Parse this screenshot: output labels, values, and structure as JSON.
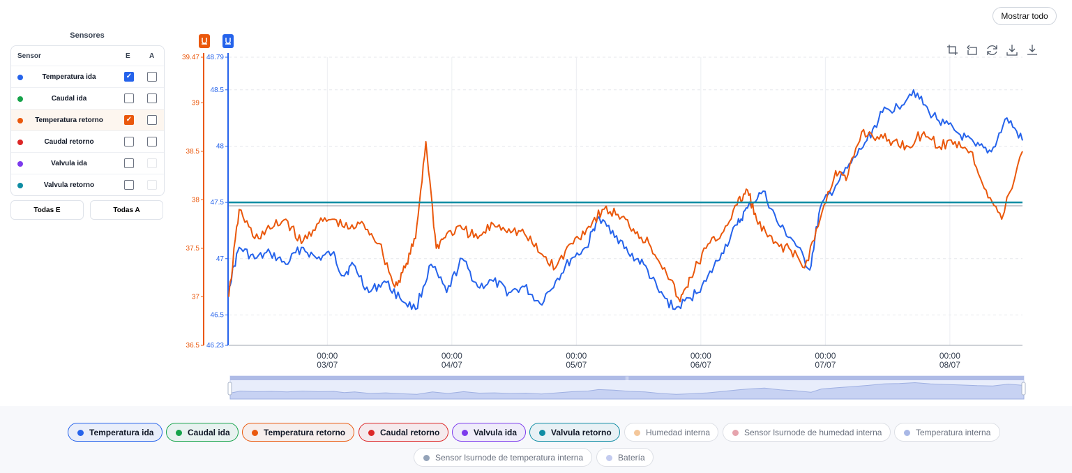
{
  "header": {
    "show_all_label": "Mostrar todo"
  },
  "sensors": {
    "title": "Sensores",
    "columns": {
      "sensor": "Sensor",
      "e": "E",
      "a": "A"
    },
    "rows": [
      {
        "label": "Temperatura ida",
        "color": "#2563eb",
        "e": true,
        "a": false
      },
      {
        "label": "Caudal ida",
        "color": "#16a34a",
        "e": false,
        "a": false
      },
      {
        "label": "Temperatura retorno",
        "color": "#ea580c",
        "e": true,
        "a": false
      },
      {
        "label": "Caudal retorno",
        "color": "#dc2626",
        "e": false,
        "a": false
      },
      {
        "label": "Valvula ida",
        "color": "#7c3aed",
        "e": false,
        "a": null
      },
      {
        "label": "Valvula retorno",
        "color": "#0e8ca3",
        "e": false,
        "a": null
      }
    ],
    "all_e_label": "Todas E",
    "all_a_label": "Todas A"
  },
  "toolbar": {
    "icons": [
      "crop-icon",
      "undo-icon",
      "refresh-icon",
      "download-icon",
      "download-alt-icon"
    ]
  },
  "chart_data": {
    "type": "line",
    "title": "",
    "x_range": [
      "2025-07-02 05:00",
      "2025-07-08 14:00"
    ],
    "x_ticks": [
      {
        "time": "00:00",
        "date": "03/07",
        "x": "2025-07-03 00:00"
      },
      {
        "time": "00:00",
        "date": "04/07",
        "x": "2025-07-04 00:00"
      },
      {
        "time": "00:00",
        "date": "05/07",
        "x": "2025-07-05 00:00"
      },
      {
        "time": "00:00",
        "date": "06/07",
        "x": "2025-07-06 00:00"
      },
      {
        "time": "00:00",
        "date": "07/07",
        "x": "2025-07-07 00:00"
      },
      {
        "time": "00:00",
        "date": "08/07",
        "x": "2025-07-08 00:00"
      }
    ],
    "y_axes": [
      {
        "id": "left",
        "color": "#ea580c",
        "range": [
          36.5,
          39.47
        ],
        "ticks": [
          "36.5",
          "37",
          "37.5",
          "38",
          "38.5",
          "39",
          "39.47"
        ]
      },
      {
        "id": "right",
        "color": "#2563eb",
        "range": [
          46.23,
          48.79
        ],
        "ticks": [
          "46.23",
          "46.5",
          "47",
          "47.5",
          "48",
          "48.5",
          "48.79"
        ]
      }
    ],
    "grid": true,
    "series": [
      {
        "name": "Temperatura ida",
        "color": "#2563eb",
        "axis": "right",
        "points": [
          [
            "2025-07-02 05:00",
            46.75
          ],
          [
            "2025-07-02 07:00",
            47.1
          ],
          [
            "2025-07-02 10:00",
            47.0
          ],
          [
            "2025-07-02 13:00",
            47.05
          ],
          [
            "2025-07-02 16:00",
            46.95
          ],
          [
            "2025-07-02 19:00",
            47.1
          ],
          [
            "2025-07-02 22:00",
            47.0
          ],
          [
            "2025-07-03 01:00",
            47.05
          ],
          [
            "2025-07-03 03:00",
            46.85
          ],
          [
            "2025-07-03 05:00",
            46.95
          ],
          [
            "2025-07-03 08:00",
            46.7
          ],
          [
            "2025-07-03 11:00",
            46.8
          ],
          [
            "2025-07-03 14:00",
            46.65
          ],
          [
            "2025-07-03 17:00",
            46.55
          ],
          [
            "2025-07-03 20:00",
            46.95
          ],
          [
            "2025-07-03 23:00",
            46.7
          ],
          [
            "2025-07-04 02:00",
            47.0
          ],
          [
            "2025-07-04 05:00",
            46.75
          ],
          [
            "2025-07-04 08:00",
            46.8
          ],
          [
            "2025-07-04 11:00",
            46.7
          ],
          [
            "2025-07-04 14:00",
            46.75
          ],
          [
            "2025-07-04 17:00",
            46.6
          ],
          [
            "2025-07-04 20:00",
            46.8
          ],
          [
            "2025-07-04 23:00",
            47.0
          ],
          [
            "2025-07-05 02:00",
            47.1
          ],
          [
            "2025-07-05 04:00",
            47.35
          ],
          [
            "2025-07-05 07:00",
            47.25
          ],
          [
            "2025-07-05 10:00",
            47.05
          ],
          [
            "2025-07-05 13:00",
            46.95
          ],
          [
            "2025-07-05 16:00",
            46.7
          ],
          [
            "2025-07-05 19:00",
            46.55
          ],
          [
            "2025-07-05 22:00",
            46.65
          ],
          [
            "2025-07-06 01:00",
            46.8
          ],
          [
            "2025-07-06 04:00",
            47.05
          ],
          [
            "2025-07-06 07:00",
            47.3
          ],
          [
            "2025-07-06 09:00",
            47.45
          ],
          [
            "2025-07-06 12:00",
            47.6
          ],
          [
            "2025-07-06 15:00",
            47.3
          ],
          [
            "2025-07-06 18:00",
            47.15
          ],
          [
            "2025-07-06 21:00",
            46.9
          ],
          [
            "2025-07-06 23:00",
            47.45
          ],
          [
            "2025-07-07 02:00",
            47.65
          ],
          [
            "2025-07-07 05:00",
            47.85
          ],
          [
            "2025-07-07 08:00",
            48.05
          ],
          [
            "2025-07-07 11:00",
            48.3
          ],
          [
            "2025-07-07 14:00",
            48.35
          ],
          [
            "2025-07-07 17:00",
            48.5
          ],
          [
            "2025-07-07 20:00",
            48.3
          ],
          [
            "2025-07-07 23:00",
            48.2
          ],
          [
            "2025-07-08 02:00",
            48.1
          ],
          [
            "2025-07-08 05:00",
            48.0
          ],
          [
            "2025-07-08 08:00",
            47.95
          ],
          [
            "2025-07-08 11:00",
            48.25
          ],
          [
            "2025-07-08 14:00",
            48.05
          ]
        ]
      },
      {
        "name": "Temperatura retorno",
        "color": "#ea580c",
        "axis": "left",
        "points": [
          [
            "2025-07-02 05:00",
            37.0
          ],
          [
            "2025-07-02 07:00",
            37.9
          ],
          [
            "2025-07-02 10:00",
            37.6
          ],
          [
            "2025-07-02 13:00",
            37.7
          ],
          [
            "2025-07-02 16:00",
            37.8
          ],
          [
            "2025-07-02 19:00",
            37.55
          ],
          [
            "2025-07-02 22:00",
            37.75
          ],
          [
            "2025-07-03 01:00",
            37.8
          ],
          [
            "2025-07-03 04:00",
            37.7
          ],
          [
            "2025-07-03 07:00",
            37.75
          ],
          [
            "2025-07-03 10:00",
            37.55
          ],
          [
            "2025-07-03 13:00",
            37.1
          ],
          [
            "2025-07-03 15:00",
            37.3
          ],
          [
            "2025-07-03 17:00",
            37.6
          ],
          [
            "2025-07-03 19:00",
            38.6
          ],
          [
            "2025-07-03 21:00",
            37.5
          ],
          [
            "2025-07-03 23:00",
            37.65
          ],
          [
            "2025-07-04 02:00",
            37.7
          ],
          [
            "2025-07-04 05:00",
            37.6
          ],
          [
            "2025-07-04 08:00",
            37.75
          ],
          [
            "2025-07-04 11:00",
            37.7
          ],
          [
            "2025-07-04 14:00",
            37.65
          ],
          [
            "2025-07-04 17:00",
            37.45
          ],
          [
            "2025-07-04 20:00",
            37.3
          ],
          [
            "2025-07-04 23:00",
            37.55
          ],
          [
            "2025-07-05 02:00",
            37.7
          ],
          [
            "2025-07-05 05:00",
            37.9
          ],
          [
            "2025-07-05 08:00",
            37.85
          ],
          [
            "2025-07-05 11:00",
            37.7
          ],
          [
            "2025-07-05 14:00",
            37.55
          ],
          [
            "2025-07-05 17:00",
            37.3
          ],
          [
            "2025-07-05 20:00",
            36.95
          ],
          [
            "2025-07-05 22:00",
            37.2
          ],
          [
            "2025-07-06 01:00",
            37.5
          ],
          [
            "2025-07-06 04:00",
            37.65
          ],
          [
            "2025-07-06 07:00",
            37.95
          ],
          [
            "2025-07-06 09:00",
            38.1
          ],
          [
            "2025-07-06 11:00",
            37.75
          ],
          [
            "2025-07-06 14:00",
            37.55
          ],
          [
            "2025-07-06 17:00",
            37.5
          ],
          [
            "2025-07-06 20:00",
            37.3
          ],
          [
            "2025-07-06 23:00",
            37.8
          ],
          [
            "2025-07-07 02:00",
            38.3
          ],
          [
            "2025-07-07 04:00",
            38.2
          ],
          [
            "2025-07-07 07:00",
            38.7
          ],
          [
            "2025-07-07 10:00",
            38.65
          ],
          [
            "2025-07-07 13:00",
            38.6
          ],
          [
            "2025-07-07 16:00",
            38.55
          ],
          [
            "2025-07-07 19:00",
            38.7
          ],
          [
            "2025-07-07 22:00",
            38.55
          ],
          [
            "2025-07-08 01:00",
            38.6
          ],
          [
            "2025-07-08 04:00",
            38.5
          ],
          [
            "2025-07-08 07:00",
            38.1
          ],
          [
            "2025-07-08 10:00",
            37.8
          ],
          [
            "2025-07-08 14:00",
            38.5
          ]
        ]
      },
      {
        "name": "Valvula retorno",
        "color": "#0e8ca3",
        "axis": "right",
        "points": [
          [
            "2025-07-02 05:00",
            47.5
          ],
          [
            "2025-07-08 14:00",
            47.5
          ]
        ]
      }
    ]
  },
  "legend": {
    "items": [
      {
        "label": "Temperatura ida",
        "color": "#2563eb",
        "active": true
      },
      {
        "label": "Caudal ida",
        "color": "#16a34a",
        "active": true
      },
      {
        "label": "Temperatura retorno",
        "color": "#ea580c",
        "active": true
      },
      {
        "label": "Caudal retorno",
        "color": "#dc2626",
        "active": true
      },
      {
        "label": "Valvula ida",
        "color": "#7c3aed",
        "active": true
      },
      {
        "label": "Valvula retorno",
        "color": "#0e8ca3",
        "active": true
      },
      {
        "label": "Humedad interna",
        "color": "#f4c79a",
        "active": false
      },
      {
        "label": "Sensor lsurnode de humedad interna",
        "color": "#e6a4ad",
        "active": false
      },
      {
        "label": "Temperatura interna",
        "color": "#a9b8e6",
        "active": false
      },
      {
        "label": "Sensor lsurnode de temperatura interna",
        "color": "#94a3b8",
        "active": false
      },
      {
        "label": "Batería",
        "color": "#c3cbef",
        "active": false
      }
    ]
  }
}
